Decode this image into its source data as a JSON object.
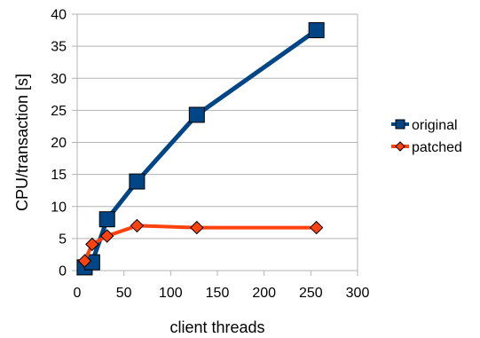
{
  "chart_data": {
    "type": "line",
    "xlabel": "client threads",
    "ylabel": "CPU/transaction [s]",
    "xlim": [
      0,
      300
    ],
    "ylim": [
      0,
      40
    ],
    "x_ticks": [
      "0",
      "50",
      "100",
      "150",
      "200",
      "250",
      "300"
    ],
    "y_ticks": [
      "0",
      "5",
      "10",
      "15",
      "20",
      "25",
      "30",
      "35",
      "40"
    ],
    "grid": "horizontal",
    "legend_position": "right",
    "series": [
      {
        "name": "original",
        "marker": "square",
        "color": "#004586",
        "x": [
          8,
          16,
          32,
          64,
          128,
          256
        ],
        "y": [
          0.5,
          1.3,
          8.0,
          13.9,
          24.3,
          37.5
        ]
      },
      {
        "name": "patched",
        "marker": "diamond",
        "color": "#ff420e",
        "x": [
          8,
          16,
          32,
          64,
          128,
          256
        ],
        "y": [
          1.5,
          4.1,
          5.4,
          7.0,
          6.7,
          6.7
        ]
      }
    ]
  }
}
